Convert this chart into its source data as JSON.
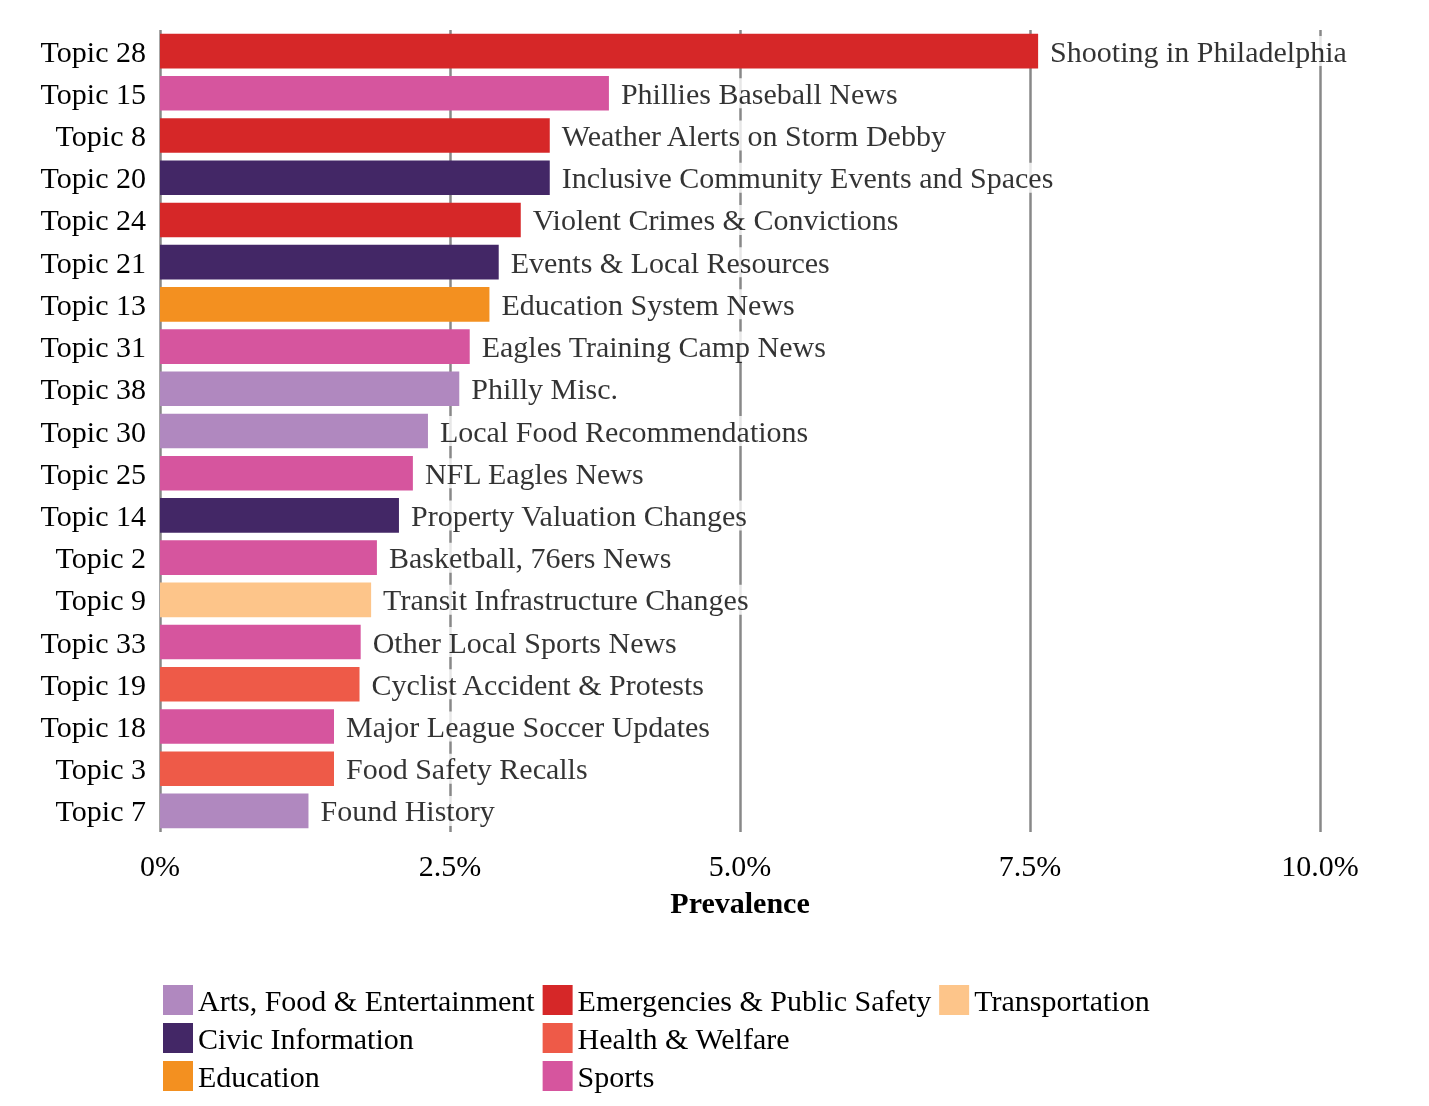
{
  "chart_data": {
    "type": "bar",
    "orientation": "horizontal",
    "xlabel": "Prevalence",
    "categories": [
      "Topic 28",
      "Topic 15",
      "Topic 8",
      "Topic 20",
      "Topic 24",
      "Topic 21",
      "Topic 13",
      "Topic 31",
      "Topic 38",
      "Topic 30",
      "Topic 25",
      "Topic 14",
      "Topic 2",
      "Topic 9",
      "Topic 33",
      "Topic 19",
      "Topic 18",
      "Topic 3",
      "Topic 7"
    ],
    "series": [
      {
        "name": "Arts, Food & Entertainment",
        "color": "#b088bf",
        "values": [
          null,
          null,
          null,
          null,
          null,
          null,
          null,
          null,
          2.58,
          2.31,
          null,
          null,
          null,
          null,
          null,
          null,
          null,
          null,
          1.28
        ]
      },
      {
        "name": "Civic Information",
        "color": "#432766",
        "values": [
          null,
          null,
          null,
          3.36,
          null,
          2.92,
          null,
          null,
          null,
          null,
          null,
          2.06,
          null,
          null,
          null,
          null,
          null,
          null,
          null
        ]
      },
      {
        "name": "Education",
        "color": "#f39020",
        "values": [
          null,
          null,
          null,
          null,
          null,
          null,
          2.84,
          null,
          null,
          null,
          null,
          null,
          null,
          null,
          null,
          null,
          null,
          null,
          null
        ]
      },
      {
        "name": "Emergencies & Public Safety",
        "color": "#d62728",
        "values": [
          7.57,
          null,
          3.36,
          null,
          3.11,
          null,
          null,
          null,
          null,
          null,
          null,
          null,
          null,
          null,
          null,
          null,
          null,
          null,
          null
        ]
      },
      {
        "name": "Health & Welfare",
        "color": "#ee5a48",
        "values": [
          null,
          null,
          null,
          null,
          null,
          null,
          null,
          null,
          null,
          null,
          null,
          null,
          null,
          null,
          null,
          1.72,
          null,
          1.5,
          null
        ]
      },
      {
        "name": "Sports",
        "color": "#d6559e",
        "values": [
          null,
          3.87,
          null,
          null,
          null,
          null,
          null,
          2.67,
          null,
          null,
          2.18,
          null,
          1.87,
          null,
          1.73,
          null,
          1.5,
          null,
          null
        ]
      },
      {
        "name": "Transportation",
        "color": "#fdc58a",
        "values": [
          null,
          null,
          null,
          null,
          null,
          null,
          null,
          null,
          null,
          null,
          null,
          null,
          null,
          1.82,
          null,
          null,
          null,
          null,
          null
        ]
      }
    ],
    "annotations": [
      {
        "text": "Shooting in Philadelphia",
        "x": 7.57,
        "y": "Topic 28"
      },
      {
        "text": "Phillies Baseball News",
        "x": 3.87,
        "y": "Topic 15"
      },
      {
        "text": "Weather Alerts on Storm Debby",
        "x": 3.36,
        "y": "Topic 8"
      },
      {
        "text": "Inclusive Community Events and Spaces",
        "x": 3.36,
        "y": "Topic 20"
      },
      {
        "text": "Violent Crimes & Convictions",
        "x": 3.11,
        "y": "Topic 24"
      },
      {
        "text": "Events & Local Resources",
        "x": 2.92,
        "y": "Topic 21"
      },
      {
        "text": "Education System News",
        "x": 2.84,
        "y": "Topic 13"
      },
      {
        "text": "Eagles Training Camp News",
        "x": 2.67,
        "y": "Topic 31"
      },
      {
        "text": "Philly Misc.",
        "x": 2.58,
        "y": "Topic 38"
      },
      {
        "text": "Local Food Recommendations",
        "x": 2.31,
        "y": "Topic 30"
      },
      {
        "text": "NFL Eagles News",
        "x": 2.18,
        "y": "Topic 25"
      },
      {
        "text": "Property Valuation Changes",
        "x": 2.06,
        "y": "Topic 14"
      },
      {
        "text": "Basketball, 76ers News",
        "x": 1.87,
        "y": "Topic 2"
      },
      {
        "text": "Transit Infrastructure Changes",
        "x": 1.82,
        "y": "Topic 9"
      },
      {
        "text": "Other Local Sports News",
        "x": 1.73,
        "y": "Topic 33"
      },
      {
        "text": "Cyclist Accident & Protests",
        "x": 1.72,
        "y": "Topic 19"
      },
      {
        "text": "Major League Soccer Updates",
        "x": 1.5,
        "y": "Topic 18"
      },
      {
        "text": "Food Safety Recalls",
        "x": 1.5,
        "y": "Topic 3"
      },
      {
        "text": "Found History",
        "x": 1.28,
        "y": "Topic 7"
      }
    ],
    "xlim": [
      0,
      10
    ],
    "xticks": [
      {
        "value": 0,
        "label": "0%"
      },
      {
        "value": 2.5,
        "label": "2.5%"
      },
      {
        "value": 5,
        "label": "5.0%"
      },
      {
        "value": 7.5,
        "label": "7.5%"
      },
      {
        "value": 10,
        "label": "10.0%"
      }
    ],
    "grid": "x",
    "legend": "bottom"
  }
}
